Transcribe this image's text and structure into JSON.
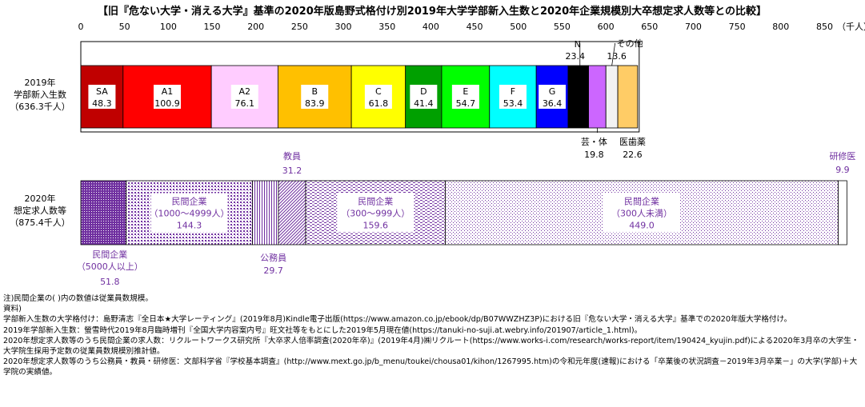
{
  "chart_data": {
    "type": "bar",
    "orientation": "horizontal-stacked",
    "title": "【旧『危ない大学・消える大学』基準の2020年版島野式格付け別2019年大学学部新入生数と2020年企業規模別大卒想定求人数等との比較】",
    "unit_label": "（千人）",
    "xlim": [
      0,
      850
    ],
    "x_ticks": [
      "0",
      "50",
      "100",
      "150",
      "200",
      "250",
      "300",
      "350",
      "400",
      "450",
      "500",
      "550",
      "600",
      "650",
      "700",
      "750",
      "800",
      "850"
    ],
    "rows": [
      {
        "label_lines": [
          "2019年",
          "学部新入生数",
          "（636.3千人）"
        ],
        "segments": [
          {
            "name": "SA",
            "value": 48.3,
            "value_label": "48.3",
            "color": "#c00000"
          },
          {
            "name": "A1",
            "value": 100.9,
            "value_label": "100.9",
            "color": "#ff0000"
          },
          {
            "name": "A2",
            "value": 76.1,
            "value_label": "76.1",
            "color": "#ffccff"
          },
          {
            "name": "B",
            "value": 83.9,
            "value_label": "83.9",
            "color": "#ffc000"
          },
          {
            "name": "C",
            "value": 61.8,
            "value_label": "61.8",
            "color": "#ffff00"
          },
          {
            "name": "D",
            "value": 41.4,
            "value_label": "41.4",
            "color": "#00a000"
          },
          {
            "name": "E",
            "value": 54.7,
            "value_label": "54.7",
            "color": "#00ff00"
          },
          {
            "name": "F",
            "value": 53.4,
            "value_label": "53.4",
            "color": "#00ffff"
          },
          {
            "name": "G",
            "value": 36.4,
            "value_label": "36.4",
            "color": "#0000ff"
          },
          {
            "name": "N",
            "value": 23.4,
            "value_label": "23.4",
            "color": "#000000"
          },
          {
            "name": "芸・体",
            "value": 19.8,
            "value_label": "19.8",
            "color": "#cc66ff"
          },
          {
            "name": "その他",
            "value": 13.6,
            "value_label": "13.6",
            "color": "#f2f2f2"
          },
          {
            "name": "医歯薬",
            "value": 22.6,
            "value_label": "22.6",
            "color": "#ffcc66"
          }
        ]
      },
      {
        "label_lines": [
          "2020年",
          "想定求人数等",
          "（875.4千人）"
        ],
        "segments": [
          {
            "name_lines": [
              "民間企業",
              "（5000人以上）"
            ],
            "value": 51.8,
            "value_label": "51.8",
            "pattern": "dense-purple"
          },
          {
            "name_lines": [
              "民間企業",
              "（1000〜4999人）"
            ],
            "value": 144.3,
            "value_label": "144.3",
            "pattern": "grid-purple"
          },
          {
            "name_lines": [
              "公務員"
            ],
            "value": 29.7,
            "value_label": "29.7",
            "pattern": "vertical-purple"
          },
          {
            "name_lines": [
              "教員"
            ],
            "value": 31.2,
            "value_label": "31.2",
            "pattern": "diagonal-purple"
          },
          {
            "name_lines": [
              "民間企業",
              "（300〜999人）"
            ],
            "value": 159.6,
            "value_label": "159.6",
            "pattern": "dashed-purple"
          },
          {
            "name_lines": [
              "民間企業",
              "（300人未満）"
            ],
            "value": 449.0,
            "value_label": "449.0",
            "pattern": "dots-purple"
          },
          {
            "name_lines": [
              "研修医"
            ],
            "value": 9.9,
            "value_label": "9.9",
            "pattern": "white"
          }
        ]
      }
    ]
  },
  "notes": {
    "line1": "注)民間企業の( )内の数値は従業員数規模。",
    "line2": "資料)",
    "line3": "学部新入生数の大学格付け：島野清志『全日本★大学レーティング』(2019年8月)Kindle電子出版(https://www.amazon.co.jp/ebook/dp/B07WWZHZ3P)における旧『危ない大学・消える大学』基準での2020年版大学格付け。",
    "line4": "2019年学部新入生数：螢雪時代2019年8月臨時増刊『全国大学内容案内号』旺文社等をもとにした2019年5月現在値(https://tanuki-no-suji.at.webry.info/201907/article_1.html)。",
    "line5": "2020年想定求人数等のうち民間企業の求人数：リクルートワークス研究所『大卒求人倍率調査(2020年卒)』(2019年4月)㈱リクルート(https://www.works-i.com/research/works-report/item/190424_kyujin.pdf)による2020年3月卒の大学生・大学院生採用予定数の従業員数規模別推計値。",
    "line6": "2020年想定求人数等のうち公務員・教員・研修医：文部科学省『学校基本調査』(http://www.mext.go.jp/b_menu/toukei/chousa01/kihon/1267995.htm)の令和元年度(速報)における「卒業後の状況調査－2019年3月卒業－」の大学(学部)＋大学院の実績値。"
  },
  "colors": {
    "accent_text": "#7030a0"
  }
}
